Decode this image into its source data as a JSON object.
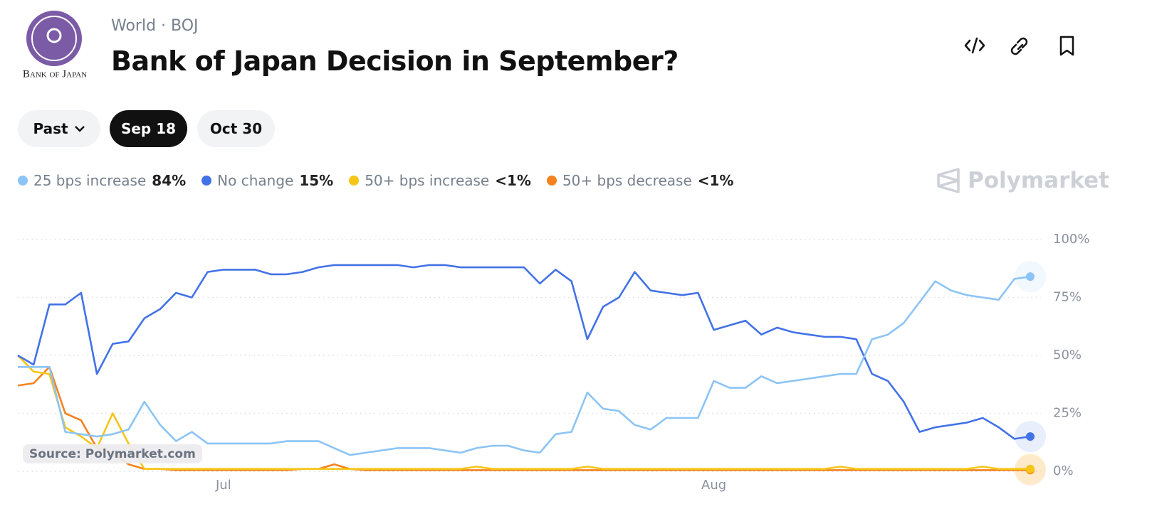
{
  "header": {
    "logo_text": "Bank of Japan",
    "breadcrumb": [
      "World",
      "BOJ"
    ],
    "title": "Bank of Japan Decision in September?"
  },
  "tabs": [
    "Past",
    "Sep 18",
    "Oct 30"
  ],
  "brand": "Polymarket",
  "source": "Source: Polymarket.com",
  "chart_data": {
    "type": "line",
    "categories": [
      null,
      null,
      null,
      null,
      null,
      null,
      null,
      null,
      null,
      null,
      null,
      null,
      null,
      "Jul",
      null,
      null,
      null,
      null,
      null,
      null,
      null,
      null,
      null,
      null,
      null,
      null,
      null,
      null,
      null,
      null,
      null,
      null,
      null,
      null,
      null,
      null,
      null,
      null,
      null,
      null,
      null,
      null,
      null,
      null,
      "Aug",
      null,
      null,
      null,
      null,
      null,
      null,
      null,
      null,
      null,
      null,
      null,
      null,
      null,
      null,
      null,
      null,
      null,
      null,
      null,
      null
    ],
    "series": [
      {
        "name": "25 bps increase",
        "color": "#8cc4f5",
        "legend_label": "84%",
        "values": [
          45,
          45,
          45,
          17,
          16,
          15,
          16,
          18,
          30,
          20,
          13,
          17,
          12,
          12,
          12,
          12,
          12,
          13,
          13,
          13,
          10,
          7,
          8,
          9,
          10,
          10,
          10,
          9,
          8,
          10,
          11,
          11,
          9,
          8,
          16,
          17,
          34,
          27,
          26,
          20,
          18,
          23,
          23,
          23,
          39,
          36,
          36,
          41,
          38,
          39,
          40,
          41,
          42,
          42,
          57,
          59,
          64,
          73,
          82,
          78,
          76,
          75,
          74,
          83,
          84
        ]
      },
      {
        "name": "No change",
        "color": "#4272e6",
        "legend_label": "15%",
        "values": [
          50,
          46,
          72,
          72,
          77,
          42,
          55,
          56,
          66,
          70,
          77,
          75,
          86,
          87,
          87,
          87,
          85,
          85,
          86,
          88,
          89,
          89,
          89,
          89,
          89,
          88,
          89,
          89,
          88,
          88,
          88,
          88,
          88,
          81,
          87,
          82,
          57,
          71,
          75,
          86,
          78,
          77,
          76,
          77,
          61,
          63,
          65,
          59,
          62,
          60,
          59,
          58,
          58,
          57,
          42,
          39,
          30,
          17,
          19,
          20,
          21,
          23,
          19,
          14,
          15
        ]
      },
      {
        "name": "50+ bps increase",
        "color": "#f5c518",
        "legend_label": "<1%",
        "values": [
          50,
          43,
          42,
          19,
          15,
          10,
          25,
          12,
          1,
          1,
          1,
          1,
          1,
          1,
          1,
          1,
          1,
          1,
          1,
          1,
          1,
          1,
          1,
          1,
          1,
          1,
          1,
          1,
          1,
          2,
          1,
          1,
          1,
          1,
          1,
          1,
          2,
          1,
          1,
          1,
          1,
          1,
          1,
          1,
          1,
          1,
          1,
          1,
          1,
          1,
          1,
          1,
          2,
          1,
          1,
          1,
          1,
          1,
          1,
          1,
          1,
          2,
          1,
          1,
          1
        ]
      },
      {
        "name": "50+ bps decrease",
        "color": "#f5821f",
        "legend_label": "<1%",
        "values": [
          37,
          38,
          45,
          25,
          22,
          10,
          8,
          3,
          1,
          1,
          0.5,
          0.5,
          0.5,
          0.5,
          0.5,
          0.5,
          0.5,
          0.5,
          1,
          1,
          3,
          1,
          0.5,
          0.5,
          0.5,
          0.5,
          0.5,
          0.5,
          0.5,
          0.5,
          0.5,
          0.5,
          0.5,
          0.5,
          0.5,
          0.5,
          0.5,
          0.5,
          0.5,
          0.5,
          0.5,
          0.5,
          0.5,
          0.5,
          0.5,
          0.5,
          0.5,
          0.5,
          0.5,
          0.5,
          0.5,
          0.5,
          0.5,
          0.5,
          0.5,
          0.5,
          0.5,
          0.5,
          0.5,
          0.5,
          0.5,
          0.5,
          0.5,
          0.5,
          0.5
        ]
      }
    ],
    "ylim": [
      0,
      100
    ],
    "yticks": [
      {
        "value": 0,
        "label": "0%"
      },
      {
        "value": 25,
        "label": "25%"
      },
      {
        "value": 50,
        "label": "50%"
      },
      {
        "value": 75,
        "label": "75%"
      },
      {
        "value": 100,
        "label": "100%"
      }
    ],
    "grid": true
  }
}
